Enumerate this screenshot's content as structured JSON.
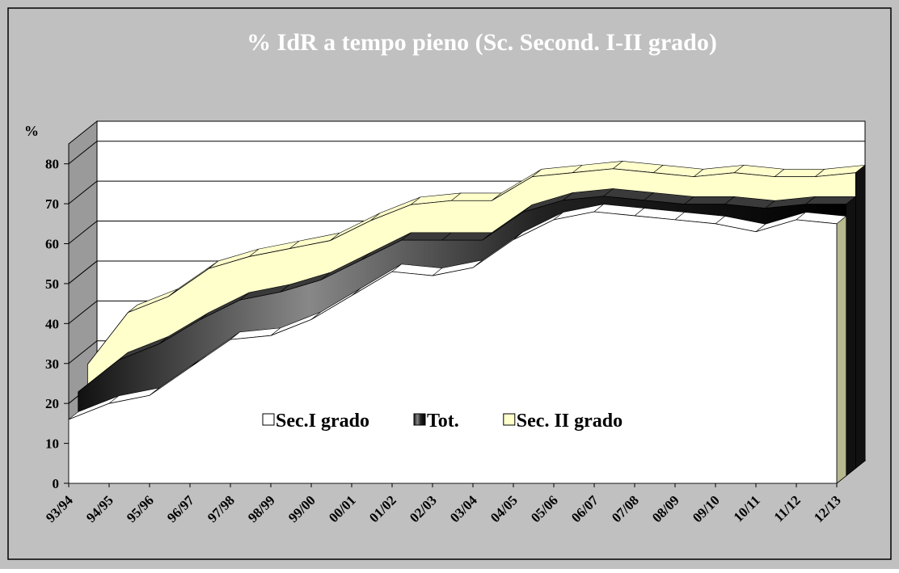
{
  "chart_data": {
    "type": "area3d",
    "title": "% IdR a tempo pieno (Sc. Second. I-II grado)",
    "y_label": "%",
    "categories": [
      "93/94",
      "94/95",
      "95/96",
      "96/97",
      "97/98",
      "98/99",
      "99/00",
      "00/01",
      "01/02",
      "02/03",
      "03/04",
      "04/05",
      "05/06",
      "06/07",
      "07/08",
      "08/09",
      "09/10",
      "10/11",
      "11/12",
      "12/13"
    ],
    "series": [
      {
        "name": "Sec.I grado",
        "color": "#ffffff",
        "values": [
          16,
          20,
          22,
          29,
          36,
          37,
          41,
          47,
          53,
          52,
          54,
          61,
          66,
          68,
          67,
          66,
          65,
          63,
          66,
          65
        ]
      },
      {
        "name": "Tot.",
        "color": "#3a3a3a",
        "values": [
          21,
          29,
          33,
          39,
          44,
          46,
          49,
          54,
          59,
          59,
          59,
          66,
          69,
          70,
          69,
          68,
          68,
          67,
          68,
          68
        ]
      },
      {
        "name": "Sec. II grado",
        "color": "#ffffcc",
        "values": [
          26,
          39,
          43,
          50,
          53,
          55,
          57,
          62,
          66,
          67,
          67,
          73,
          74,
          75,
          74,
          73,
          74,
          73,
          73,
          74
        ]
      }
    ],
    "ylim": [
      0,
      85
    ],
    "yticks": [
      0,
      10,
      20,
      30,
      40,
      50,
      60,
      70,
      80
    ],
    "grid": true
  }
}
